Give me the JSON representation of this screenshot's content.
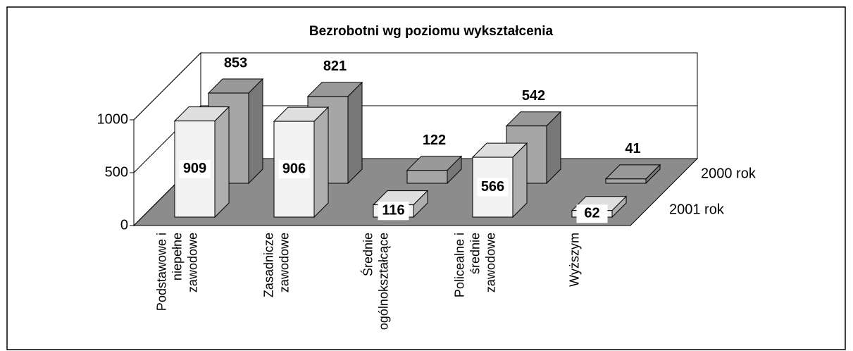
{
  "chart_data": {
    "type": "bar3d",
    "title": "Bezrobotni wg poziomu wykształcenia",
    "categories": [
      [
        "Podstawowe i",
        "niepełne",
        "zawodowe"
      ],
      [
        "Zasadnicze",
        "zawodowe"
      ],
      [
        "Średnie",
        "ogólnokształcące"
      ],
      [
        "Policealne i",
        "średnie",
        "zawodowe"
      ],
      [
        "Wyższym"
      ]
    ],
    "series": [
      {
        "name": "2001 rok",
        "color": "#f2f2f2",
        "values": [
          909,
          906,
          116,
          566,
          62
        ]
      },
      {
        "name": "2000 rok",
        "color": "#a6a6a6",
        "values": [
          853,
          821,
          122,
          542,
          41
        ]
      }
    ],
    "ylim": [
      0,
      1000
    ],
    "yticks": [
      0,
      500,
      1000
    ],
    "grid": true
  }
}
